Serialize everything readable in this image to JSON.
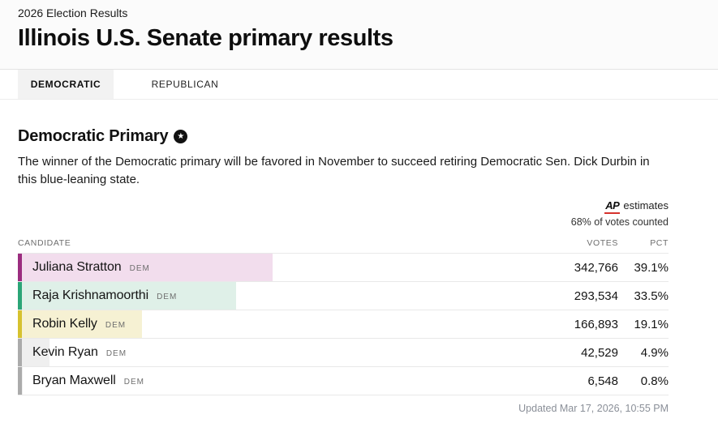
{
  "header": {
    "eyebrow": "2026 Election Results",
    "title": "Illinois U.S. Senate primary results"
  },
  "tabs": [
    {
      "label": "DEMOCRATIC",
      "active": true
    },
    {
      "label": "REPUBLICAN",
      "active": false
    }
  ],
  "section": {
    "heading": "Democratic Primary",
    "heading_icon": "star-circle-icon",
    "star_glyph": "★",
    "description": "The winner of the Democratic primary will be favored in November to succeed retiring Democratic Sen. Dick Durbin in this blue-leaning state."
  },
  "meta": {
    "source_label": "AP",
    "estimates_label": "estimates",
    "counted_label": "68% of votes counted",
    "ap_underline_color": "#d6322d"
  },
  "table": {
    "columns": [
      "CANDIDATE",
      "VOTES",
      "PCT"
    ],
    "rows": [
      {
        "name": "Juliana Stratton",
        "party": "DEM",
        "votes": "342,766",
        "pct": "39.1%",
        "pct_value": 39.1,
        "accent_color": "#9b2d7f",
        "fill_color": "#f2dded"
      },
      {
        "name": "Raja Krishnamoorthi",
        "party": "DEM",
        "votes": "293,534",
        "pct": "33.5%",
        "pct_value": 33.5,
        "accent_color": "#2ba577",
        "fill_color": "#dff0e8"
      },
      {
        "name": "Robin Kelly",
        "party": "DEM",
        "votes": "166,893",
        "pct": "19.1%",
        "pct_value": 19.1,
        "accent_color": "#d6c22f",
        "fill_color": "#f6f1d3"
      },
      {
        "name": "Kevin Ryan",
        "party": "DEM",
        "votes": "42,529",
        "pct": "4.9%",
        "pct_value": 4.9,
        "accent_color": "#ababab",
        "fill_color": "#efefef"
      },
      {
        "name": "Bryan Maxwell",
        "party": "DEM",
        "votes": "6,548",
        "pct": "0.8%",
        "pct_value": 0.8,
        "accent_color": "#ababab",
        "fill_color": "#efefef"
      }
    ]
  },
  "footer": {
    "updated": "Updated Mar 17, 2026, 10:55 PM"
  },
  "chart_data": {
    "type": "bar",
    "title": "Illinois U.S. Senate primary results — Democratic Primary",
    "categories": [
      "Juliana Stratton",
      "Raja Krishnamoorthi",
      "Robin Kelly",
      "Kevin Ryan",
      "Bryan Maxwell"
    ],
    "series": [
      {
        "name": "Votes",
        "values": [
          342766,
          293534,
          166893,
          42529,
          6548
        ]
      },
      {
        "name": "Percent",
        "values": [
          39.1,
          33.5,
          19.1,
          4.9,
          0.8
        ]
      }
    ],
    "xlabel": "Candidate",
    "ylabel": "Vote share (%)",
    "ylim": [
      0,
      100
    ],
    "annotations": [
      "AP estimates",
      "68% of votes counted",
      "Updated Mar 17, 2026, 10:55 PM"
    ]
  }
}
